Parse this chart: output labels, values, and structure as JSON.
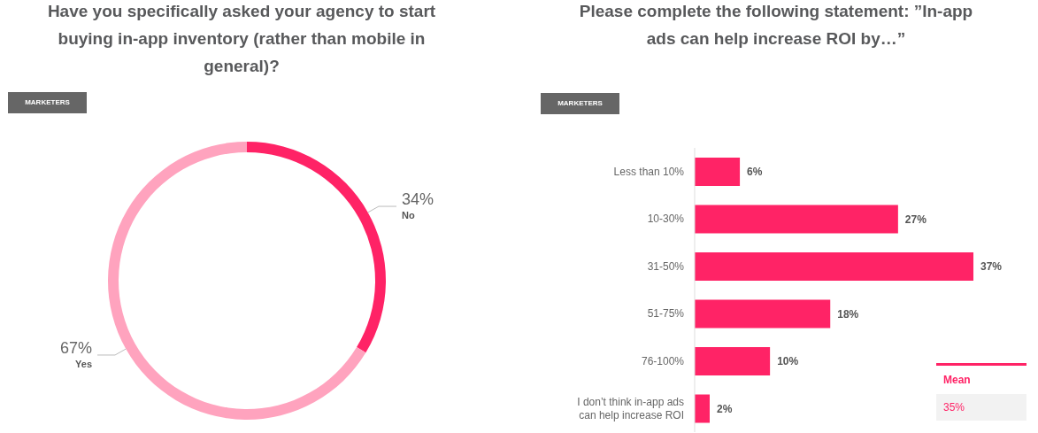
{
  "chart_data": [
    {
      "type": "donut",
      "title": "Have you specifically asked your agency to start buying in-app inventory (rather than mobile in general)?",
      "subtitle": "MARKETERS",
      "categories": [
        "No",
        "Yes"
      ],
      "values": [
        34,
        67
      ],
      "value_labels": [
        "34%",
        "67%"
      ],
      "colors": [
        "#ff2366",
        "#ffa3be"
      ]
    },
    {
      "type": "bar",
      "orientation": "horizontal",
      "title": "Please complete the following statement: ”In-app ads can help increase ROI by…”",
      "subtitle": "MARKETERS",
      "categories": [
        "Less than 10%",
        "10-30%",
        "31-50%",
        "51-75%",
        "76-100%",
        "I don’t think in-app ads can help increase ROI"
      ],
      "values": [
        6,
        27,
        37,
        18,
        10,
        2
      ],
      "value_labels": [
        "6%",
        "27%",
        "37%",
        "18%",
        "10%",
        "2%"
      ],
      "color": "#ff2366",
      "tick_labels": "y",
      "annotations": [
        "Mean",
        "35%"
      ]
    }
  ]
}
